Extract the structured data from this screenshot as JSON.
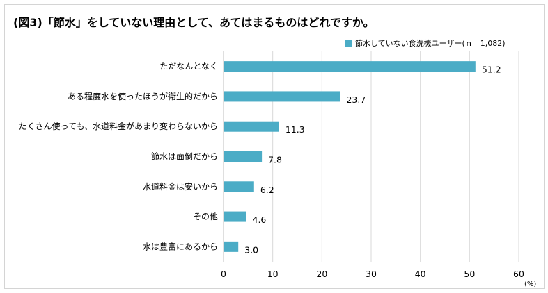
{
  "chart_data": {
    "type": "bar",
    "orientation": "horizontal",
    "title": "(図3)「節水」をしていない理由として、あてはまるものはどれですか。",
    "categories": [
      "ただなんとなく",
      "ある程度水を使ったほうが衛生的だから",
      "たくさん使っても、水道料金があまり変わらないから",
      "節水は面倒だから",
      "水道料金は安いから",
      "その他",
      "水は豊富にあるから"
    ],
    "series": [
      {
        "name": "節水していない食洗機ユーザー(ｎ＝1,082)",
        "values": [
          51.2,
          23.7,
          11.3,
          7.8,
          6.2,
          4.6,
          3.0
        ],
        "value_labels": [
          "51.2",
          "23.7",
          "11.3",
          "7.8",
          "6.2",
          "4.6",
          "3.0"
        ],
        "color": "#4bacc6"
      }
    ],
    "xlim": [
      0,
      60
    ],
    "x_ticks": [
      "0",
      "10",
      "20",
      "30",
      "40",
      "50",
      "60"
    ],
    "x_unit": "(%)",
    "grid": true,
    "legend_position": "top-right"
  },
  "colors": {
    "bar": "#4bacc6",
    "grid": "#d9d9d9",
    "axis": "#bfbfbf"
  }
}
